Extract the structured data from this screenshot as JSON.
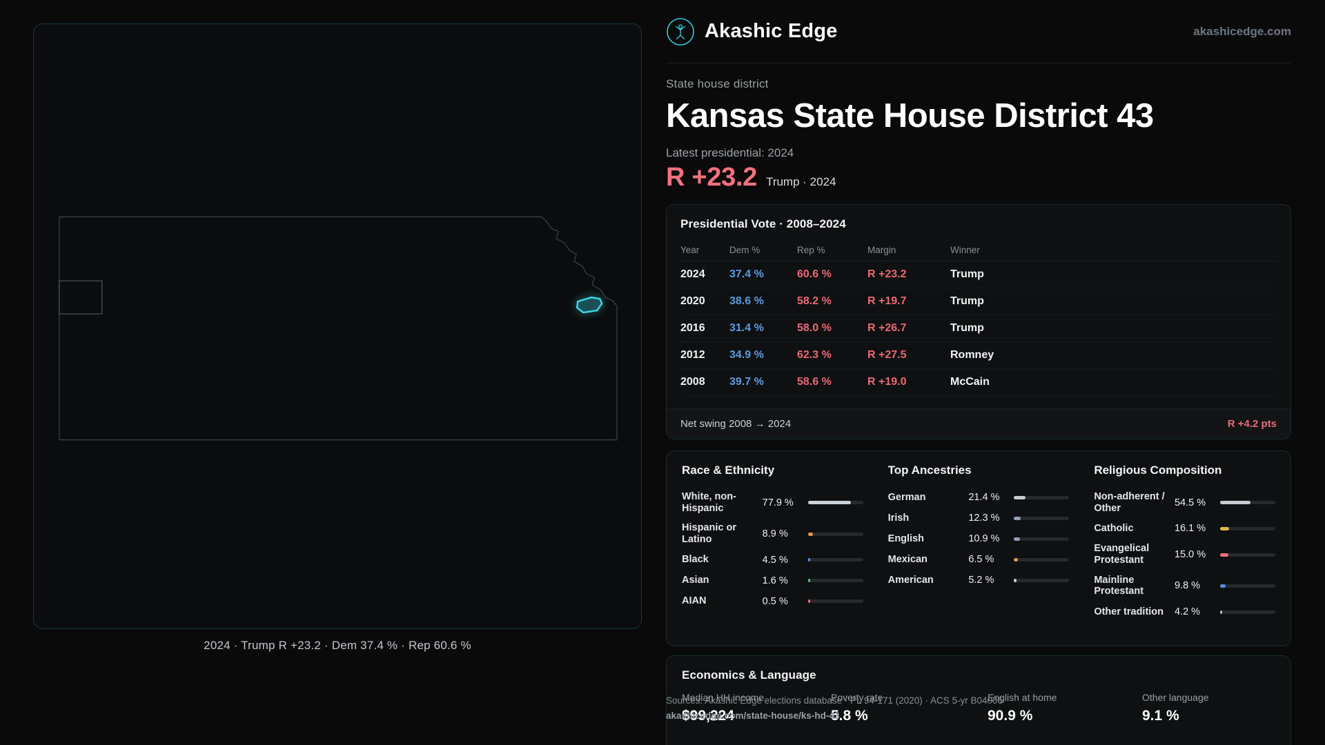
{
  "brand": {
    "name": "Akashic Edge",
    "domain": "akashicedge.com"
  },
  "hero": {
    "kicker": "State house district",
    "title": "Kansas State House District 43",
    "latest": "Latest presidential: 2024",
    "margin": "R +23.2",
    "margin_context": "Trump · 2024"
  },
  "map": {
    "caption": "2024 · Trump R +23.2 · Dem 37.4 % · Rep 60.6 %"
  },
  "presidential": {
    "title": "Presidential Vote · 2008–2024",
    "columns": [
      "Year",
      "Dem %",
      "Rep %",
      "Margin",
      "Winner"
    ],
    "rows": [
      [
        "2024",
        "37.4 %",
        "60.6 %",
        "R +23.2",
        "Trump"
      ],
      [
        "2020",
        "38.6 %",
        "58.2 %",
        "R +19.7",
        "Trump"
      ],
      [
        "2016",
        "31.4 %",
        "58.0 %",
        "R +26.7",
        "Trump"
      ],
      [
        "2012",
        "34.9 %",
        "62.3 %",
        "R +27.5",
        "Romney"
      ],
      [
        "2008",
        "39.7 %",
        "58.6 %",
        "R +19.0",
        "McCain"
      ]
    ],
    "net_swing_label": "Net swing 2008 → 2024",
    "net_swing_value": "R +4.2 pts"
  },
  "demographics": {
    "sections": [
      {
        "title": "Race & Ethnicity",
        "rows": [
          {
            "label": "White, non-Hispanic",
            "value": "77.9 %",
            "pct": 77.9,
            "color": "#ccd2d9"
          },
          {
            "label": "Hispanic or Latino",
            "value": "8.9 %",
            "pct": 8.9,
            "color": "#e09a4e"
          },
          {
            "label": "Black",
            "value": "4.5 %",
            "pct": 4.5,
            "color": "#5b8def"
          },
          {
            "label": "Asian",
            "value": "1.6 %",
            "pct": 1.6,
            "color": "#57b98b"
          },
          {
            "label": "AIAN",
            "value": "0.5 %",
            "pct": 0.5,
            "color": "#e06c75"
          }
        ]
      },
      {
        "title": "Top Ancestries",
        "rows": [
          {
            "label": "German",
            "value": "21.4 %",
            "pct": 21.4,
            "color": "#c7ccd3"
          },
          {
            "label": "Irish",
            "value": "12.3 %",
            "pct": 12.3,
            "color": "#8fa0b5"
          },
          {
            "label": "English",
            "value": "10.9 %",
            "pct": 10.9,
            "color": "#8fa0b5"
          },
          {
            "label": "Mexican",
            "value": "6.5 %",
            "pct": 6.5,
            "color": "#e09a4e"
          },
          {
            "label": "American",
            "value": "5.2 %",
            "pct": 5.2,
            "color": "#c7ccd3"
          }
        ]
      },
      {
        "title": "Religious Composition",
        "rows": [
          {
            "label": "Non-adherent / Other",
            "value": "54.5 %",
            "pct": 54.5,
            "color": "#c7ccd3"
          },
          {
            "label": "Catholic",
            "value": "16.1 %",
            "pct": 16.1,
            "color": "#e5b54a"
          },
          {
            "label": "Evangelical Protestant",
            "value": "15.0 %",
            "pct": 15.0,
            "color": "#e8737c"
          },
          {
            "label": "Mainline Protestant",
            "value": "9.8 %",
            "pct": 9.8,
            "color": "#5b8def"
          },
          {
            "label": "Other tradition",
            "value": "4.2 %",
            "pct": 4.2,
            "color": "#aeb4bc"
          }
        ]
      }
    ]
  },
  "economics": {
    "title": "Economics & Language",
    "stats": [
      {
        "label": "Median HH income",
        "value": "$99,224"
      },
      {
        "label": "Poverty rate",
        "value": "5.8 %"
      },
      {
        "label": "English at home",
        "value": "90.9 %"
      },
      {
        "label": "Other language",
        "value": "9.1 %"
      }
    ]
  },
  "footer": {
    "sources": "Sources: Akashic Edge elections database · PL 94-171 (2020) · ACS 5-yr B04006",
    "permalink": "akashicedge.com/state-house/ks-hd-43"
  },
  "colors": {
    "accent": "#35c8d8",
    "dem": "#5b9ce0",
    "rep": "#ec6a74"
  }
}
